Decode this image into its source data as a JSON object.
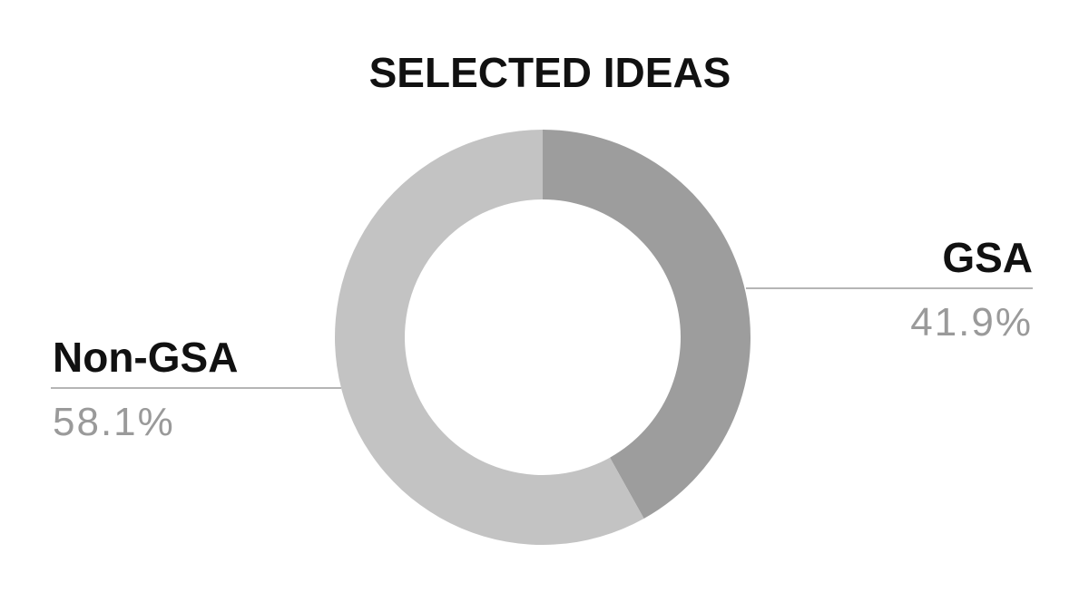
{
  "chart_data": {
    "type": "pie",
    "title": "SELECTED IDEAS",
    "hole": true,
    "slices": [
      {
        "name": "GSA",
        "value": 41.9,
        "label": "41.9%",
        "color": "#9d9d9d"
      },
      {
        "name": "Non-GSA",
        "value": 58.1,
        "label": "58.1%",
        "color": "#c3c3c3"
      }
    ]
  }
}
